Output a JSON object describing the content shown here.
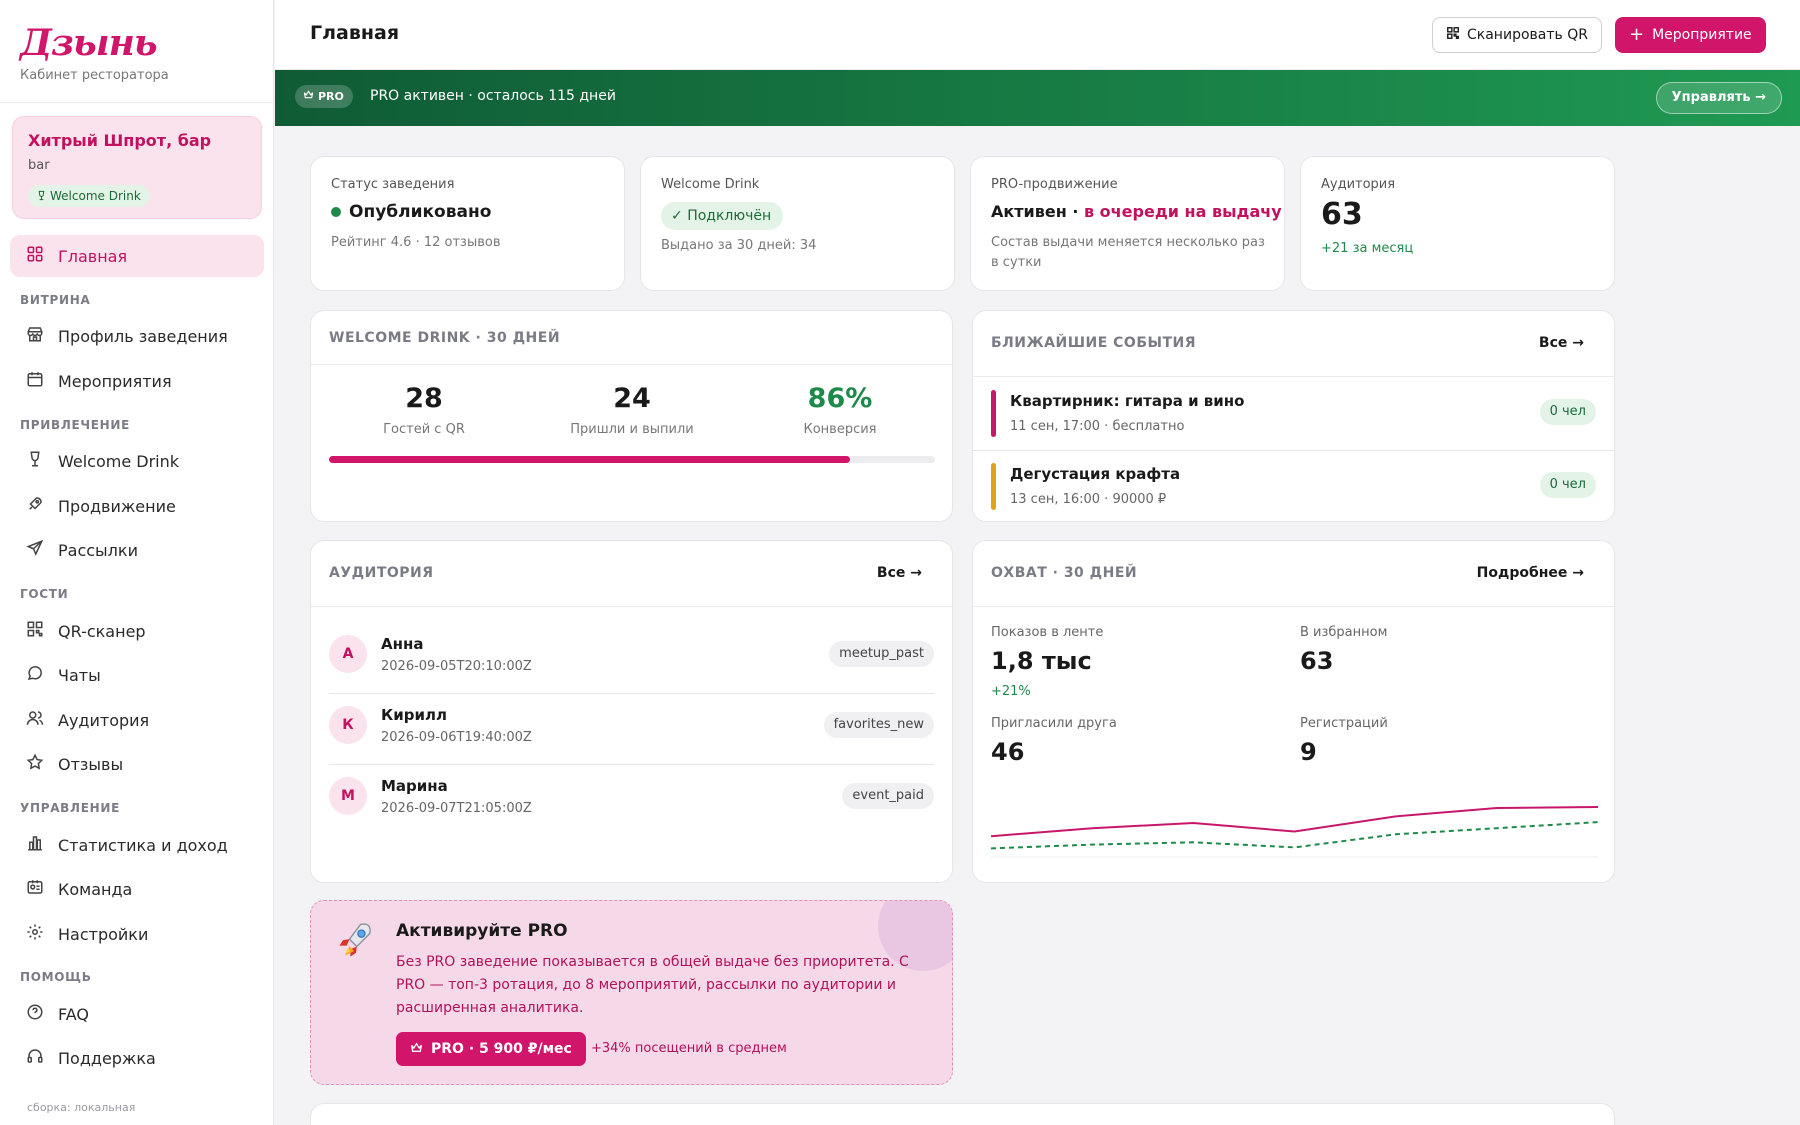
{
  "brand": {
    "logo": "Дзынь",
    "subtitle": "Кабинет ресторатора"
  },
  "venue": {
    "name": "Хитрый Шпрот, бар",
    "type": "bar",
    "badge": "Welcome Drink"
  },
  "nav": {
    "home": "Главная",
    "sec_showcase": "ВИТРИНА",
    "profile": "Профиль заведения",
    "events": "Мероприятия",
    "sec_attract": "ПРИВЛЕЧЕНИЕ",
    "welcome": "Welcome Drink",
    "promotion": "Продвижение",
    "mailings": "Рассылки",
    "sec_guests": "ГОСТИ",
    "qr": "QR-сканер",
    "chats": "Чаты",
    "audience": "Аудитория",
    "reviews": "Отзывы",
    "sec_manage": "УПРАВЛЕНИЕ",
    "stats": "Статистика и доход",
    "team": "Команда",
    "settings": "Настройки",
    "sec_help": "ПОМОЩЬ",
    "faq": "FAQ",
    "support": "Поддержка"
  },
  "build": "сборка: локальная",
  "header": {
    "title": "Главная",
    "scan_qr": "Сканировать QR",
    "add_event": "Мероприятие"
  },
  "pro_banner": {
    "pill": "PRO",
    "text": "PRO активен · осталось 115 дней",
    "manage": "Управлять →"
  },
  "status_cards": {
    "status": {
      "label": "Статус заведения",
      "value": "Опубликовано",
      "sub": "Рейтинг 4.6 · 12 отзывов"
    },
    "welcome": {
      "label": "Welcome Drink",
      "value": "Подключён",
      "sub": "Выдано за 30 дней: 34"
    },
    "promo": {
      "label": "PRO-продвижение",
      "value_a": "Активен",
      "sep": " · ",
      "value_b": "в очереди на выдачу",
      "sub": "Состав выдачи меняется несколько раз в сутки"
    },
    "audience": {
      "label": "Аудитория",
      "value": "63",
      "delta": "+21 за месяц"
    }
  },
  "welcome_stats": {
    "title": "WELCOME DRINK · 30 ДНЕЙ",
    "guests": {
      "value": "28",
      "label": "Гостей с QR"
    },
    "drank": {
      "value": "24",
      "label": "Пришли и выпили"
    },
    "conversion": {
      "value": "86%",
      "label": "Конверсия"
    },
    "progress": 0.86
  },
  "upcoming": {
    "title": "БЛИЖАЙШИЕ СОБЫТИЯ",
    "all": "Все →",
    "items": [
      {
        "name": "Квартирник: гитара и вино",
        "meta": "11 сен, 17:00 · бесплатно",
        "count": "0 чел",
        "color": "#c8176a"
      },
      {
        "name": "Дегустация крафта",
        "meta": "13 сен, 16:00 · 90000 ₽",
        "count": "0 чел",
        "color": "#e0a317"
      }
    ]
  },
  "audience_list": {
    "title": "АУДИТОРИЯ",
    "all": "Все →",
    "items": [
      {
        "initial": "А",
        "name": "Анна",
        "time": "2026-09-05T20:10:00Z",
        "tag": "meetup_past"
      },
      {
        "initial": "К",
        "name": "Кирилл",
        "time": "2026-09-06T19:40:00Z",
        "tag": "favorites_new"
      },
      {
        "initial": "М",
        "name": "Марина",
        "time": "2026-09-07T21:05:00Z",
        "tag": "event_paid"
      }
    ]
  },
  "reach": {
    "title": "ОХВАТ · 30 ДНЕЙ",
    "more": "Подробнее →",
    "feed": {
      "label": "Показов в ленте",
      "value": "1,8 тыс",
      "delta": "+21%"
    },
    "favorites": {
      "label": "В избранном",
      "value": "63"
    },
    "invited": {
      "label": "Пригласили друга",
      "value": "46"
    },
    "registrations": {
      "label": "Регистраций",
      "value": "9"
    }
  },
  "chart_data": {
    "type": "line",
    "x": [
      1,
      2,
      3,
      4,
      5,
      6,
      7
    ],
    "series": [
      {
        "values": [
          0.38,
          0.55,
          0.66,
          0.48,
          0.8,
          0.98,
          1.0
        ],
        "color": "#c8176a",
        "style": "solid"
      },
      {
        "values": [
          0.12,
          0.2,
          0.25,
          0.14,
          0.42,
          0.55,
          0.68
        ],
        "color": "#1e8a4a",
        "style": "dashed"
      }
    ],
    "ylim": [
      0,
      1.15
    ],
    "grid": false
  },
  "promo_card": {
    "title": "Активируйте PRO",
    "text": "Без PRO заведение показывается в общей выдаче без приоритета. С PRO — топ-3 ротация, до 8 мероприятий, рассылки по аудитории и расширенная аналитика.",
    "button": "PRO · 5 900 ₽/мес",
    "note": "+34% посещений в среднем"
  },
  "colors": {
    "accent": "#d1156b",
    "success": "#1e8a4a",
    "pro_green": "#17803f"
  }
}
